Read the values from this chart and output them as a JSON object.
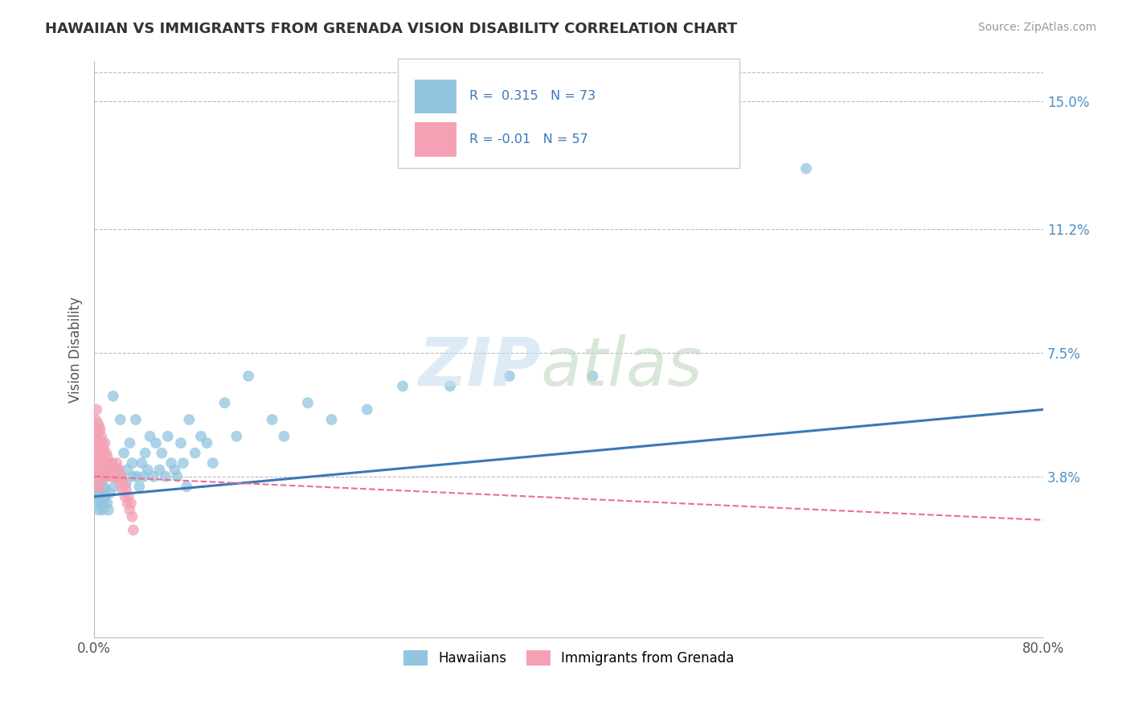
{
  "title": "HAWAIIAN VS IMMIGRANTS FROM GRENADA VISION DISABILITY CORRELATION CHART",
  "source": "Source: ZipAtlas.com",
  "ylabel": "Vision Disability",
  "x_min": 0.0,
  "x_max": 0.8,
  "y_min": -0.01,
  "y_max": 0.162,
  "y_ticks": [
    0.038,
    0.075,
    0.112,
    0.15
  ],
  "y_tick_labels": [
    "3.8%",
    "7.5%",
    "11.2%",
    "15.0%"
  ],
  "x_ticks": [
    0.0,
    0.8
  ],
  "x_tick_labels": [
    "0.0%",
    "80.0%"
  ],
  "hawaiian_R": 0.315,
  "hawaiian_N": 73,
  "grenada_R": -0.01,
  "grenada_N": 57,
  "color_hawaiian": "#92C5DE",
  "color_grenada": "#F4A0B5",
  "color_trend_hawaiian": "#3A78B8",
  "color_trend_grenada": "#E87090",
  "background_color": "#FFFFFF",
  "grid_color": "#BBBBBB",
  "legend_label_hawaiian": "Hawaiians",
  "legend_label_grenada": "Immigrants from Grenada",
  "hawaiian_x": [
    0.001,
    0.002,
    0.002,
    0.003,
    0.003,
    0.004,
    0.004,
    0.005,
    0.005,
    0.006,
    0.006,
    0.007,
    0.007,
    0.008,
    0.008,
    0.009,
    0.01,
    0.01,
    0.011,
    0.012,
    0.013,
    0.014,
    0.015,
    0.016,
    0.017,
    0.018,
    0.02,
    0.022,
    0.023,
    0.025,
    0.027,
    0.028,
    0.03,
    0.032,
    0.033,
    0.035,
    0.036,
    0.038,
    0.04,
    0.042,
    0.043,
    0.045,
    0.047,
    0.05,
    0.052,
    0.055,
    0.057,
    0.06,
    0.062,
    0.065,
    0.068,
    0.07,
    0.073,
    0.075,
    0.078,
    0.08,
    0.085,
    0.09,
    0.095,
    0.1,
    0.11,
    0.12,
    0.13,
    0.15,
    0.16,
    0.18,
    0.2,
    0.23,
    0.26,
    0.3,
    0.35,
    0.42,
    0.6
  ],
  "hawaiian_y": [
    0.034,
    0.036,
    0.032,
    0.03,
    0.033,
    0.036,
    0.028,
    0.032,
    0.036,
    0.03,
    0.033,
    0.028,
    0.038,
    0.03,
    0.035,
    0.032,
    0.034,
    0.038,
    0.03,
    0.028,
    0.033,
    0.04,
    0.042,
    0.062,
    0.035,
    0.038,
    0.04,
    0.055,
    0.038,
    0.045,
    0.036,
    0.04,
    0.048,
    0.042,
    0.038,
    0.055,
    0.038,
    0.035,
    0.042,
    0.038,
    0.045,
    0.04,
    0.05,
    0.038,
    0.048,
    0.04,
    0.045,
    0.038,
    0.05,
    0.042,
    0.04,
    0.038,
    0.048,
    0.042,
    0.035,
    0.055,
    0.045,
    0.05,
    0.048,
    0.042,
    0.06,
    0.05,
    0.068,
    0.055,
    0.05,
    0.06,
    0.055,
    0.058,
    0.065,
    0.065,
    0.068,
    0.068,
    0.13
  ],
  "grenada_x": [
    0.001,
    0.001,
    0.001,
    0.001,
    0.001,
    0.002,
    0.002,
    0.002,
    0.002,
    0.002,
    0.002,
    0.003,
    0.003,
    0.003,
    0.003,
    0.004,
    0.004,
    0.004,
    0.005,
    0.005,
    0.005,
    0.005,
    0.006,
    0.006,
    0.006,
    0.007,
    0.007,
    0.008,
    0.008,
    0.009,
    0.009,
    0.01,
    0.01,
    0.011,
    0.011,
    0.012,
    0.013,
    0.014,
    0.015,
    0.016,
    0.017,
    0.018,
    0.019,
    0.02,
    0.021,
    0.022,
    0.023,
    0.024,
    0.025,
    0.026,
    0.027,
    0.028,
    0.029,
    0.03,
    0.031,
    0.032,
    0.033
  ],
  "grenada_y": [
    0.055,
    0.05,
    0.048,
    0.043,
    0.038,
    0.058,
    0.052,
    0.048,
    0.043,
    0.038,
    0.035,
    0.054,
    0.05,
    0.046,
    0.04,
    0.053,
    0.048,
    0.042,
    0.052,
    0.046,
    0.04,
    0.035,
    0.05,
    0.044,
    0.038,
    0.048,
    0.042,
    0.046,
    0.04,
    0.048,
    0.038,
    0.045,
    0.04,
    0.044,
    0.038,
    0.042,
    0.04,
    0.038,
    0.042,
    0.038,
    0.04,
    0.038,
    0.042,
    0.038,
    0.04,
    0.036,
    0.038,
    0.034,
    0.036,
    0.032,
    0.034,
    0.03,
    0.032,
    0.028,
    0.03,
    0.026,
    0.022
  ],
  "trend_h_x0": 0.0,
  "trend_h_y0": 0.032,
  "trend_h_x1": 0.8,
  "trend_h_y1": 0.058,
  "trend_g_x0": 0.0,
  "trend_g_y0": 0.038,
  "trend_g_x1": 0.8,
  "trend_g_y1": 0.025
}
